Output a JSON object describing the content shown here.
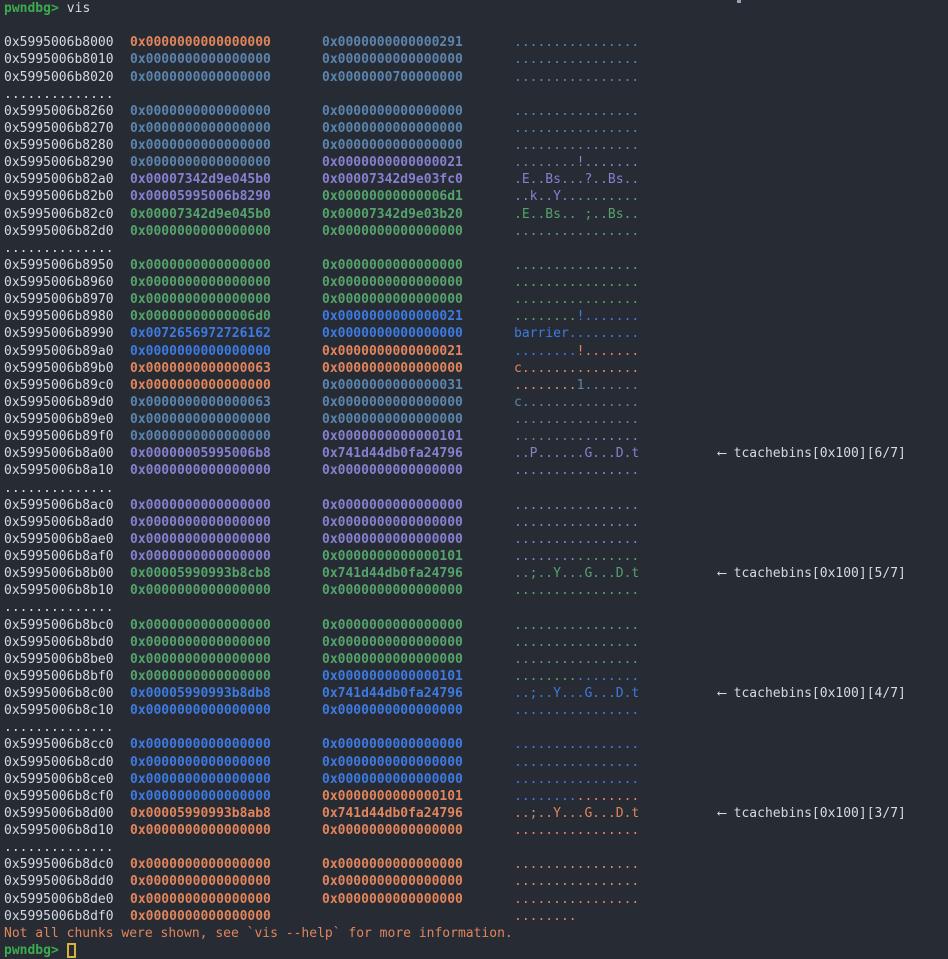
{
  "prompt": "pwndbg>",
  "command": "vis",
  "arrow": "⟵",
  "separator": "..............",
  "footer_message": "Not all chunks were shown, see `vis --help` for more information.",
  "colors": {
    "bg": "#262b34",
    "fg": "#d6dae1",
    "y": "#e2855c",
    "c": "#5d84ad",
    "p": "#8680cf",
    "g": "#55a36b",
    "b": "#3e7ae0",
    "pg": "#3cab4f",
    "cur": "#d8b13e",
    "artifact": "#9aa2ae"
  },
  "rows": [
    {
      "addr": "0x5995006b8000",
      "v": [
        [
          "0x0000000000000000",
          "y"
        ],
        [
          "0x0000000000000291",
          "c"
        ]
      ],
      "a": [
        [
          "........",
          "c"
        ],
        [
          "........",
          "c"
        ]
      ]
    },
    {
      "addr": "0x5995006b8010",
      "v": [
        [
          "0x0000000000000000",
          "c"
        ],
        [
          "0x0000000000000000",
          "c"
        ]
      ],
      "a": [
        [
          "........",
          "c"
        ],
        [
          "........",
          "c"
        ]
      ]
    },
    {
      "addr": "0x5995006b8020",
      "v": [
        [
          "0x0000000000000000",
          "c"
        ],
        [
          "0x0000000700000000",
          "c"
        ]
      ],
      "a": [
        [
          "........",
          "c"
        ],
        [
          "........",
          "c"
        ]
      ]
    },
    {
      "sep": true
    },
    {
      "addr": "0x5995006b8260",
      "v": [
        [
          "0x0000000000000000",
          "c"
        ],
        [
          "0x0000000000000000",
          "c"
        ]
      ],
      "a": [
        [
          "........",
          "c"
        ],
        [
          "........",
          "c"
        ]
      ]
    },
    {
      "addr": "0x5995006b8270",
      "v": [
        [
          "0x0000000000000000",
          "c"
        ],
        [
          "0x0000000000000000",
          "c"
        ]
      ],
      "a": [
        [
          "........",
          "c"
        ],
        [
          "........",
          "c"
        ]
      ]
    },
    {
      "addr": "0x5995006b8280",
      "v": [
        [
          "0x0000000000000000",
          "c"
        ],
        [
          "0x0000000000000000",
          "c"
        ]
      ],
      "a": [
        [
          "........",
          "c"
        ],
        [
          "........",
          "c"
        ]
      ]
    },
    {
      "addr": "0x5995006b8290",
      "v": [
        [
          "0x0000000000000000",
          "c"
        ],
        [
          "0x0000000000000021",
          "p"
        ]
      ],
      "a": [
        [
          "........",
          "c"
        ],
        [
          "!.......",
          "p"
        ]
      ]
    },
    {
      "addr": "0x5995006b82a0",
      "v": [
        [
          "0x00007342d9e045b0",
          "p"
        ],
        [
          "0x00007342d9e03fc0",
          "p"
        ]
      ],
      "a": [
        [
          ".E..Bs..",
          "p"
        ],
        [
          ".?..Bs..",
          "p"
        ]
      ]
    },
    {
      "addr": "0x5995006b82b0",
      "v": [
        [
          "0x00005995006b8290",
          "p"
        ],
        [
          "0x00000000000006d1",
          "g"
        ]
      ],
      "a": [
        [
          "..k..Y..",
          "p"
        ],
        [
          "........",
          "g"
        ]
      ]
    },
    {
      "addr": "0x5995006b82c0",
      "v": [
        [
          "0x00007342d9e045b0",
          "g"
        ],
        [
          "0x00007342d9e03b20",
          "g"
        ]
      ],
      "a": [
        [
          ".E..Bs..",
          "g"
        ],
        [
          " ;..Bs..",
          "g"
        ]
      ]
    },
    {
      "addr": "0x5995006b82d0",
      "v": [
        [
          "0x0000000000000000",
          "g"
        ],
        [
          "0x0000000000000000",
          "g"
        ]
      ],
      "a": [
        [
          "........",
          "g"
        ],
        [
          "........",
          "g"
        ]
      ]
    },
    {
      "sep": true
    },
    {
      "addr": "0x5995006b8950",
      "v": [
        [
          "0x0000000000000000",
          "g"
        ],
        [
          "0x0000000000000000",
          "g"
        ]
      ],
      "a": [
        [
          "........",
          "g"
        ],
        [
          "........",
          "g"
        ]
      ]
    },
    {
      "addr": "0x5995006b8960",
      "v": [
        [
          "0x0000000000000000",
          "g"
        ],
        [
          "0x0000000000000000",
          "g"
        ]
      ],
      "a": [
        [
          "........",
          "g"
        ],
        [
          "........",
          "g"
        ]
      ]
    },
    {
      "addr": "0x5995006b8970",
      "v": [
        [
          "0x0000000000000000",
          "g"
        ],
        [
          "0x0000000000000000",
          "g"
        ]
      ],
      "a": [
        [
          "........",
          "g"
        ],
        [
          "........",
          "g"
        ]
      ]
    },
    {
      "addr": "0x5995006b8980",
      "v": [
        [
          "0x00000000000006d0",
          "g"
        ],
        [
          "0x0000000000000021",
          "b"
        ]
      ],
      "a": [
        [
          "........",
          "g"
        ],
        [
          "!.......",
          "b"
        ]
      ]
    },
    {
      "addr": "0x5995006b8990",
      "v": [
        [
          "0x0072656972726162",
          "b"
        ],
        [
          "0x0000000000000000",
          "b"
        ]
      ],
      "a": [
        [
          "barrier.",
          "b"
        ],
        [
          "........",
          "b"
        ]
      ]
    },
    {
      "addr": "0x5995006b89a0",
      "v": [
        [
          "0x0000000000000000",
          "b"
        ],
        [
          "0x0000000000000021",
          "y"
        ]
      ],
      "a": [
        [
          "........",
          "b"
        ],
        [
          "!.......",
          "y"
        ]
      ]
    },
    {
      "addr": "0x5995006b89b0",
      "v": [
        [
          "0x0000000000000063",
          "y"
        ],
        [
          "0x0000000000000000",
          "y"
        ]
      ],
      "a": [
        [
          "c.......",
          "y"
        ],
        [
          "........",
          "y"
        ]
      ]
    },
    {
      "addr": "0x5995006b89c0",
      "v": [
        [
          "0x0000000000000000",
          "y"
        ],
        [
          "0x0000000000000031",
          "c"
        ]
      ],
      "a": [
        [
          "........",
          "y"
        ],
        [
          "1.......",
          "c"
        ]
      ]
    },
    {
      "addr": "0x5995006b89d0",
      "v": [
        [
          "0x0000000000000063",
          "c"
        ],
        [
          "0x0000000000000000",
          "c"
        ]
      ],
      "a": [
        [
          "c.......",
          "c"
        ],
        [
          "........",
          "c"
        ]
      ]
    },
    {
      "addr": "0x5995006b89e0",
      "v": [
        [
          "0x0000000000000000",
          "c"
        ],
        [
          "0x0000000000000000",
          "c"
        ]
      ],
      "a": [
        [
          "........",
          "c"
        ],
        [
          "........",
          "c"
        ]
      ]
    },
    {
      "addr": "0x5995006b89f0",
      "v": [
        [
          "0x0000000000000000",
          "c"
        ],
        [
          "0x0000000000000101",
          "p"
        ]
      ],
      "a": [
        [
          "........",
          "c"
        ],
        [
          "........",
          "p"
        ]
      ]
    },
    {
      "addr": "0x5995006b8a00",
      "v": [
        [
          "0x00000005995006b8",
          "p"
        ],
        [
          "0x741d44db0fa24796",
          "p"
        ]
      ],
      "a": [
        [
          "..P.....",
          "p"
        ],
        [
          ".G...D.t",
          "p"
        ]
      ],
      "note": "tcachebins[0x100][6/7]"
    },
    {
      "addr": "0x5995006b8a10",
      "v": [
        [
          "0x0000000000000000",
          "p"
        ],
        [
          "0x0000000000000000",
          "p"
        ]
      ],
      "a": [
        [
          "........",
          "p"
        ],
        [
          "........",
          "p"
        ]
      ]
    },
    {
      "sep": true
    },
    {
      "addr": "0x5995006b8ac0",
      "v": [
        [
          "0x0000000000000000",
          "p"
        ],
        [
          "0x0000000000000000",
          "p"
        ]
      ],
      "a": [
        [
          "........",
          "p"
        ],
        [
          "........",
          "p"
        ]
      ]
    },
    {
      "addr": "0x5995006b8ad0",
      "v": [
        [
          "0x0000000000000000",
          "p"
        ],
        [
          "0x0000000000000000",
          "p"
        ]
      ],
      "a": [
        [
          "........",
          "p"
        ],
        [
          "........",
          "p"
        ]
      ]
    },
    {
      "addr": "0x5995006b8ae0",
      "v": [
        [
          "0x0000000000000000",
          "p"
        ],
        [
          "0x0000000000000000",
          "p"
        ]
      ],
      "a": [
        [
          "........",
          "p"
        ],
        [
          "........",
          "p"
        ]
      ]
    },
    {
      "addr": "0x5995006b8af0",
      "v": [
        [
          "0x0000000000000000",
          "p"
        ],
        [
          "0x0000000000000101",
          "g"
        ]
      ],
      "a": [
        [
          "........",
          "p"
        ],
        [
          "........",
          "g"
        ]
      ]
    },
    {
      "addr": "0x5995006b8b00",
      "v": [
        [
          "0x00005990993b8cb8",
          "g"
        ],
        [
          "0x741d44db0fa24796",
          "g"
        ]
      ],
      "a": [
        [
          "..;..Y..",
          "g"
        ],
        [
          ".G...D.t",
          "g"
        ]
      ],
      "note": "tcachebins[0x100][5/7]"
    },
    {
      "addr": "0x5995006b8b10",
      "v": [
        [
          "0x0000000000000000",
          "g"
        ],
        [
          "0x0000000000000000",
          "g"
        ]
      ],
      "a": [
        [
          "........",
          "g"
        ],
        [
          "........",
          "g"
        ]
      ]
    },
    {
      "sep": true
    },
    {
      "addr": "0x5995006b8bc0",
      "v": [
        [
          "0x0000000000000000",
          "g"
        ],
        [
          "0x0000000000000000",
          "g"
        ]
      ],
      "a": [
        [
          "........",
          "g"
        ],
        [
          "........",
          "g"
        ]
      ]
    },
    {
      "addr": "0x5995006b8bd0",
      "v": [
        [
          "0x0000000000000000",
          "g"
        ],
        [
          "0x0000000000000000",
          "g"
        ]
      ],
      "a": [
        [
          "........",
          "g"
        ],
        [
          "........",
          "g"
        ]
      ]
    },
    {
      "addr": "0x5995006b8be0",
      "v": [
        [
          "0x0000000000000000",
          "g"
        ],
        [
          "0x0000000000000000",
          "g"
        ]
      ],
      "a": [
        [
          "........",
          "g"
        ],
        [
          "........",
          "g"
        ]
      ]
    },
    {
      "addr": "0x5995006b8bf0",
      "v": [
        [
          "0x0000000000000000",
          "g"
        ],
        [
          "0x0000000000000101",
          "b"
        ]
      ],
      "a": [
        [
          "........",
          "g"
        ],
        [
          "........",
          "b"
        ]
      ]
    },
    {
      "addr": "0x5995006b8c00",
      "v": [
        [
          "0x00005990993b8db8",
          "b"
        ],
        [
          "0x741d44db0fa24796",
          "b"
        ]
      ],
      "a": [
        [
          "..;..Y..",
          "b"
        ],
        [
          ".G...D.t",
          "b"
        ]
      ],
      "note": "tcachebins[0x100][4/7]"
    },
    {
      "addr": "0x5995006b8c10",
      "v": [
        [
          "0x0000000000000000",
          "b"
        ],
        [
          "0x0000000000000000",
          "b"
        ]
      ],
      "a": [
        [
          "........",
          "b"
        ],
        [
          "........",
          "b"
        ]
      ]
    },
    {
      "sep": true
    },
    {
      "addr": "0x5995006b8cc0",
      "v": [
        [
          "0x0000000000000000",
          "b"
        ],
        [
          "0x0000000000000000",
          "b"
        ]
      ],
      "a": [
        [
          "........",
          "b"
        ],
        [
          "........",
          "b"
        ]
      ]
    },
    {
      "addr": "0x5995006b8cd0",
      "v": [
        [
          "0x0000000000000000",
          "b"
        ],
        [
          "0x0000000000000000",
          "b"
        ]
      ],
      "a": [
        [
          "........",
          "b"
        ],
        [
          "........",
          "b"
        ]
      ]
    },
    {
      "addr": "0x5995006b8ce0",
      "v": [
        [
          "0x0000000000000000",
          "b"
        ],
        [
          "0x0000000000000000",
          "b"
        ]
      ],
      "a": [
        [
          "........",
          "b"
        ],
        [
          "........",
          "b"
        ]
      ]
    },
    {
      "addr": "0x5995006b8cf0",
      "v": [
        [
          "0x0000000000000000",
          "b"
        ],
        [
          "0x0000000000000101",
          "y"
        ]
      ],
      "a": [
        [
          "........",
          "b"
        ],
        [
          "........",
          "y"
        ]
      ]
    },
    {
      "addr": "0x5995006b8d00",
      "v": [
        [
          "0x00005990993b8ab8",
          "y"
        ],
        [
          "0x741d44db0fa24796",
          "y"
        ]
      ],
      "a": [
        [
          "..;..Y..",
          "y"
        ],
        [
          ".G...D.t",
          "y"
        ]
      ],
      "note": "tcachebins[0x100][3/7]"
    },
    {
      "addr": "0x5995006b8d10",
      "v": [
        [
          "0x0000000000000000",
          "y"
        ],
        [
          "0x0000000000000000",
          "y"
        ]
      ],
      "a": [
        [
          "........",
          "y"
        ],
        [
          "........",
          "y"
        ]
      ]
    },
    {
      "sep": true
    },
    {
      "addr": "0x5995006b8dc0",
      "v": [
        [
          "0x0000000000000000",
          "y"
        ],
        [
          "0x0000000000000000",
          "y"
        ]
      ],
      "a": [
        [
          "........",
          "y"
        ],
        [
          "........",
          "y"
        ]
      ]
    },
    {
      "addr": "0x5995006b8dd0",
      "v": [
        [
          "0x0000000000000000",
          "y"
        ],
        [
          "0x0000000000000000",
          "y"
        ]
      ],
      "a": [
        [
          "........",
          "y"
        ],
        [
          "........",
          "y"
        ]
      ]
    },
    {
      "addr": "0x5995006b8de0",
      "v": [
        [
          "0x0000000000000000",
          "y"
        ],
        [
          "0x0000000000000000",
          "y"
        ]
      ],
      "a": [
        [
          "........",
          "y"
        ],
        [
          "........",
          "y"
        ]
      ]
    },
    {
      "addr": "0x5995006b8df0",
      "v": [
        [
          "0x0000000000000000",
          "y"
        ]
      ],
      "a": [
        [
          "........",
          "y"
        ]
      ]
    }
  ]
}
